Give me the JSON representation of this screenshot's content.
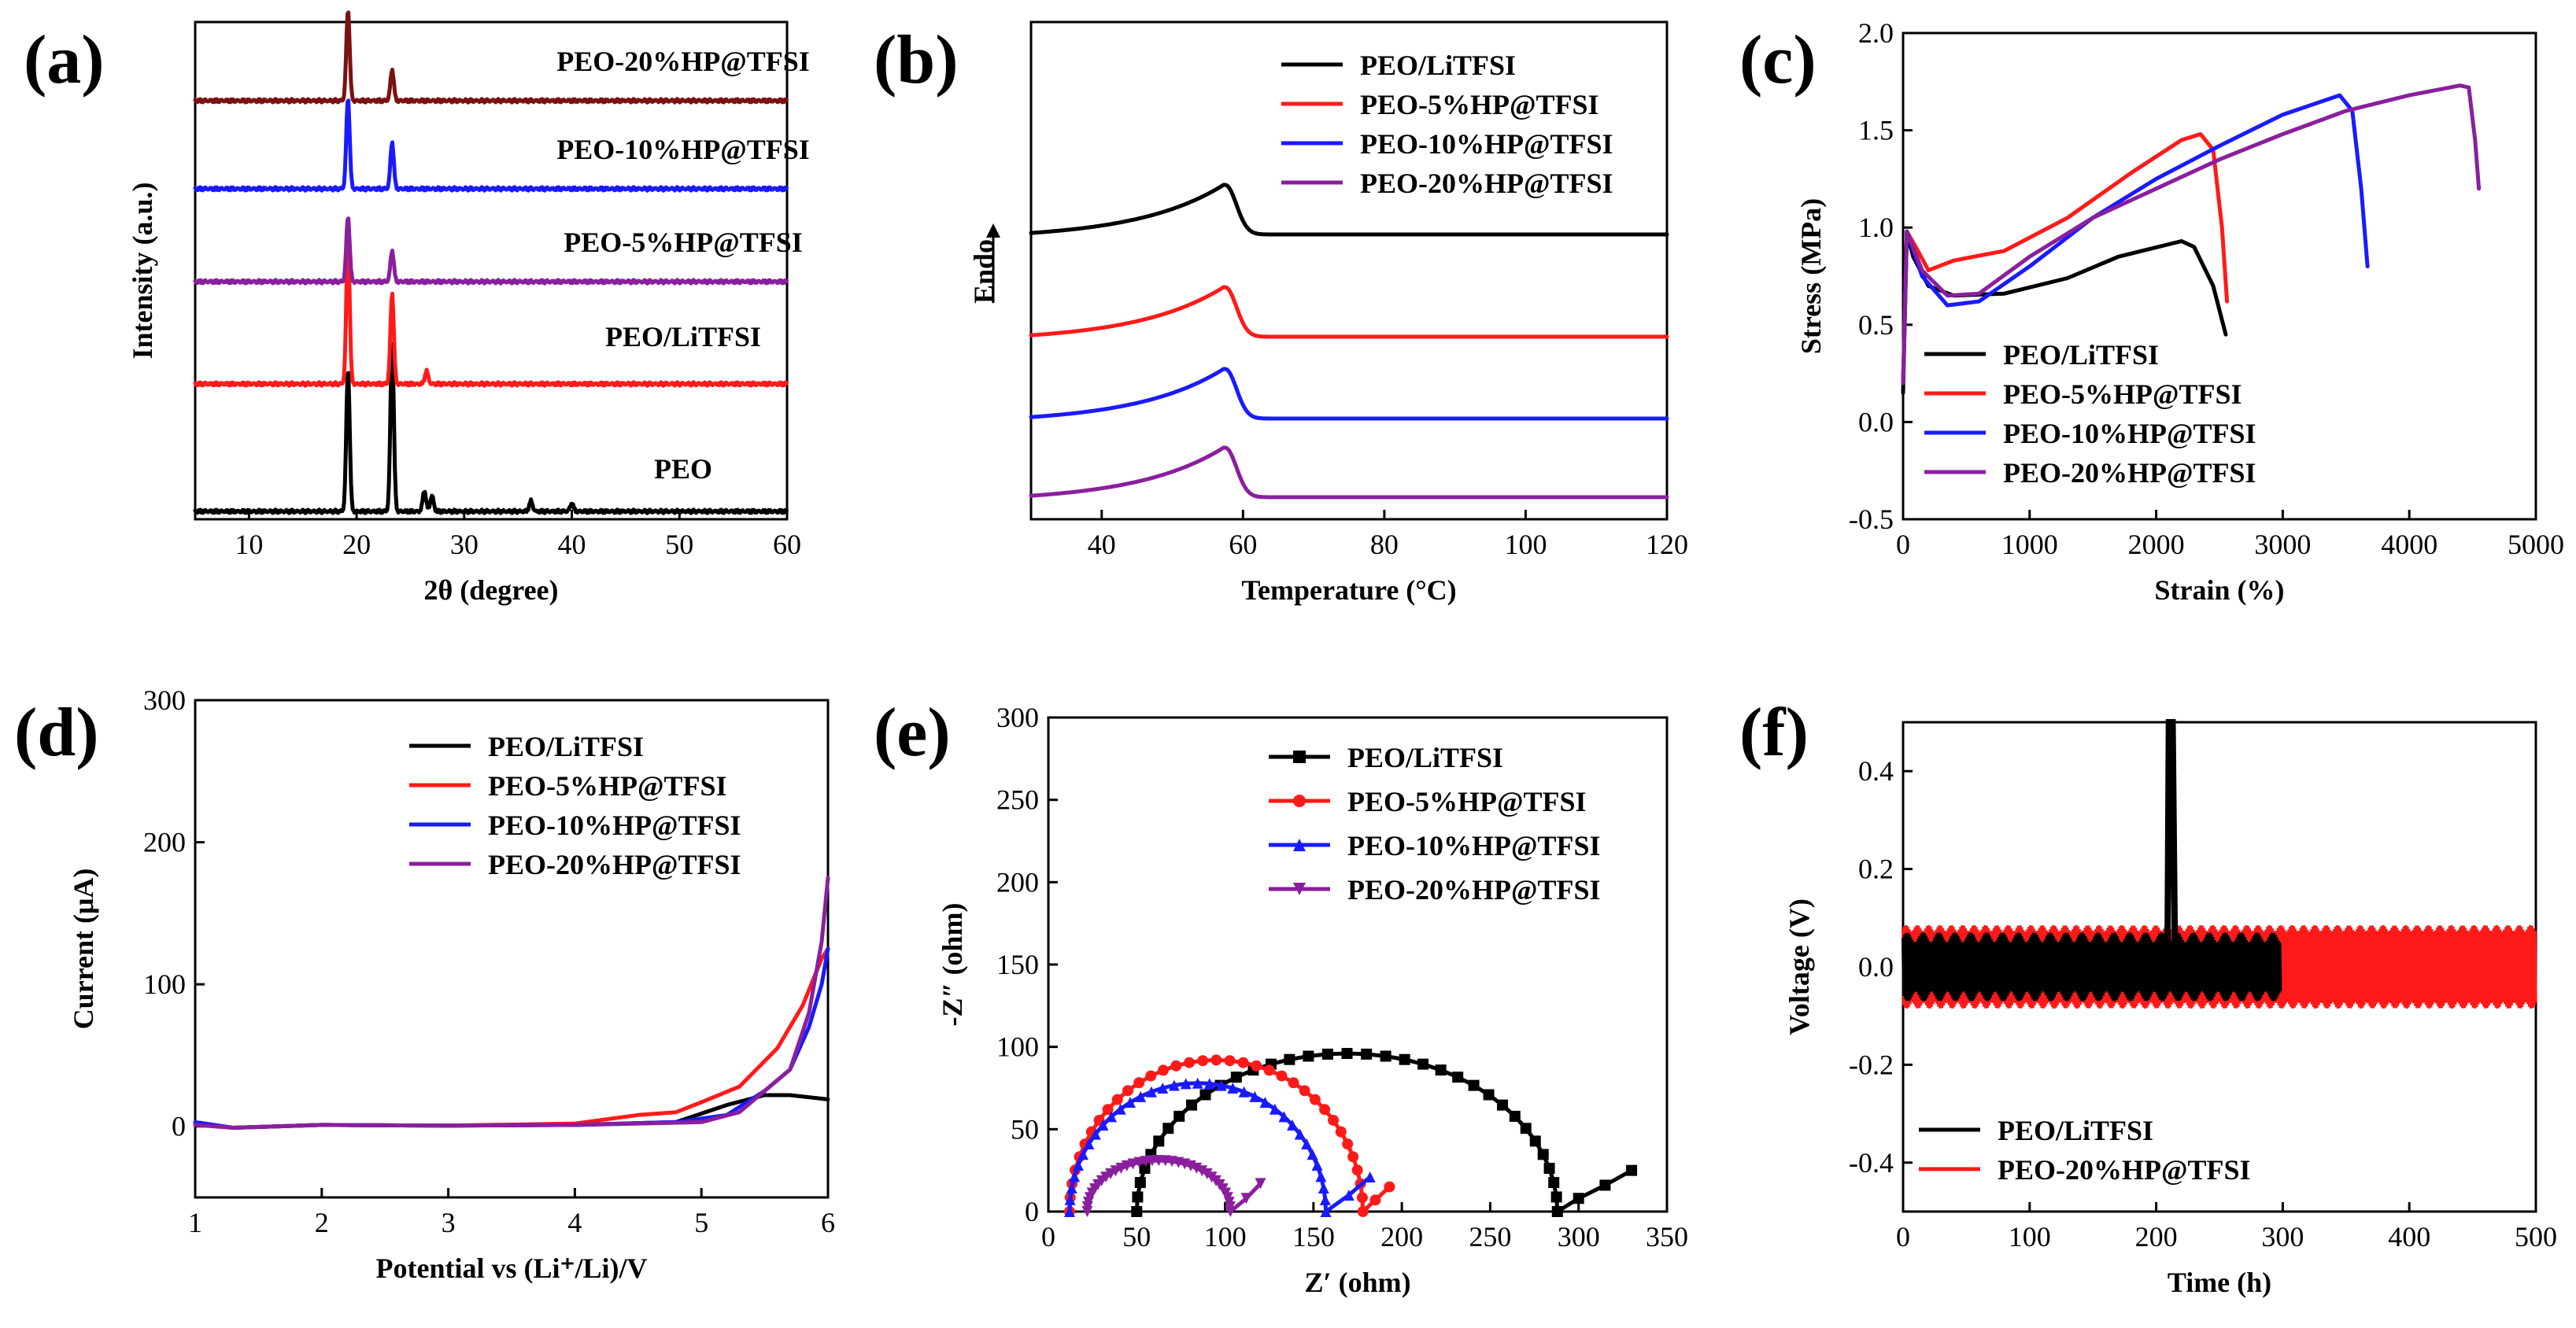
{
  "colors": {
    "black": "#000000",
    "red": "#ff1a1a",
    "blue": "#1a1aff",
    "purple": "#8a1f9e",
    "darkred": "#7a1212"
  },
  "chart_data": [
    {
      "panel": "(a)",
      "type": "line",
      "xlabel": "2θ (degree)",
      "ylabel": "Intensity (a.u.)",
      "xlim": [
        5,
        60
      ],
      "xticks": [
        10,
        20,
        30,
        40,
        50,
        60
      ],
      "series": [
        {
          "name": "PEO",
          "color": "#000000",
          "offset": 0,
          "peaks": [
            [
              19.2,
              0.55
            ],
            [
              23.3,
              0.65
            ],
            [
              26.3,
              0.08
            ],
            [
              27.0,
              0.06
            ],
            [
              36.2,
              0.04
            ],
            [
              40.0,
              0.03
            ]
          ]
        },
        {
          "name": "PEO/LiTFSI",
          "color": "#ff1a1a",
          "offset": 1,
          "peaks": [
            [
              19.2,
              0.55
            ],
            [
              23.3,
              0.35
            ],
            [
              26.5,
              0.05
            ]
          ]
        },
        {
          "name": "PEO-5%HP@TFSI",
          "color": "#8a1f9e",
          "offset": 2,
          "peaks": [
            [
              19.2,
              0.25
            ],
            [
              23.3,
              0.12
            ]
          ]
        },
        {
          "name": "PEO-10%HP@TFSI",
          "color": "#1a1aff",
          "offset": 3,
          "peaks": [
            [
              19.2,
              0.35
            ],
            [
              23.3,
              0.18
            ]
          ]
        },
        {
          "name": "PEO-20%HP@TFSI",
          "color": "#7a1212",
          "offset": 4,
          "peaks": [
            [
              19.2,
              0.35
            ],
            [
              23.3,
              0.12
            ]
          ]
        }
      ]
    },
    {
      "panel": "(b)",
      "type": "line",
      "xlabel": "Temperature (°C)",
      "ylabel": "Endo",
      "xlim": [
        30,
        120
      ],
      "xticks": [
        40,
        60,
        80,
        100,
        120
      ],
      "series": [
        {
          "name": "PEO/LiTFSI",
          "color": "#000000",
          "peak_T": 57.5
        },
        {
          "name": "PEO-5%HP@TFSI",
          "color": "#ff1a1a",
          "peak_T": 57.5
        },
        {
          "name": "PEO-10%HP@TFSI",
          "color": "#1a1aff",
          "peak_T": 57.5
        },
        {
          "name": "PEO-20%HP@TFSI",
          "color": "#8a1f9e",
          "peak_T": 57.5
        }
      ]
    },
    {
      "panel": "(c)",
      "type": "line",
      "xlabel": "Strain (%)",
      "ylabel": "Stress (MPa)",
      "xlim": [
        0,
        5000
      ],
      "ylim": [
        -0.5,
        2.0
      ],
      "xticks": [
        0,
        1000,
        2000,
        3000,
        4000,
        5000
      ],
      "yticks": [
        -0.5,
        0.0,
        0.5,
        1.0,
        1.5,
        2.0
      ],
      "series": [
        {
          "name": "PEO/LiTFSI",
          "color": "#000000",
          "points": [
            [
              0,
              0.15
            ],
            [
              30,
              0.97
            ],
            [
              80,
              0.85
            ],
            [
              200,
              0.7
            ],
            [
              400,
              0.65
            ],
            [
              800,
              0.66
            ],
            [
              1300,
              0.74
            ],
            [
              1700,
              0.85
            ],
            [
              2200,
              0.93
            ],
            [
              2300,
              0.9
            ],
            [
              2450,
              0.7
            ],
            [
              2550,
              0.45
            ]
          ]
        },
        {
          "name": "PEO-5%HP@TFSI",
          "color": "#ff1a1a",
          "points": [
            [
              0,
              0.2
            ],
            [
              30,
              0.98
            ],
            [
              100,
              0.9
            ],
            [
              200,
              0.78
            ],
            [
              400,
              0.83
            ],
            [
              800,
              0.88
            ],
            [
              1300,
              1.05
            ],
            [
              1800,
              1.28
            ],
            [
              2200,
              1.45
            ],
            [
              2350,
              1.48
            ],
            [
              2450,
              1.4
            ],
            [
              2520,
              1.0
            ],
            [
              2560,
              0.62
            ]
          ]
        },
        {
          "name": "PEO-10%HP@TFSI",
          "color": "#1a1aff",
          "points": [
            [
              0,
              0.2
            ],
            [
              30,
              0.98
            ],
            [
              150,
              0.75
            ],
            [
              350,
              0.6
            ],
            [
              600,
              0.62
            ],
            [
              1000,
              0.8
            ],
            [
              1500,
              1.05
            ],
            [
              2000,
              1.25
            ],
            [
              2500,
              1.42
            ],
            [
              3000,
              1.58
            ],
            [
              3450,
              1.68
            ],
            [
              3550,
              1.6
            ],
            [
              3620,
              1.2
            ],
            [
              3670,
              0.8
            ]
          ]
        },
        {
          "name": "PEO-20%HP@TFSI",
          "color": "#8a1f9e",
          "points": [
            [
              0,
              0.2
            ],
            [
              30,
              0.98
            ],
            [
              150,
              0.78
            ],
            [
              350,
              0.65
            ],
            [
              600,
              0.66
            ],
            [
              1000,
              0.85
            ],
            [
              1500,
              1.05
            ],
            [
              2000,
              1.2
            ],
            [
              2500,
              1.35
            ],
            [
              3000,
              1.48
            ],
            [
              3500,
              1.6
            ],
            [
              4000,
              1.68
            ],
            [
              4400,
              1.73
            ],
            [
              4470,
              1.72
            ],
            [
              4520,
              1.45
            ],
            [
              4550,
              1.2
            ]
          ]
        }
      ]
    },
    {
      "panel": "(d)",
      "type": "line",
      "xlabel": "Potential vs (Li⁺/Li)/V",
      "ylabel": "Current (μA)",
      "xlim": [
        1,
        6
      ],
      "ylim": [
        -50,
        300
      ],
      "xticks": [
        1,
        2,
        3,
        4,
        5,
        6
      ],
      "yticks": [
        0,
        100,
        200,
        300
      ],
      "series": [
        {
          "name": "PEO/LiTFSI",
          "color": "#000000",
          "points": [
            [
              1,
              2
            ],
            [
              1.3,
              -1
            ],
            [
              2,
              1
            ],
            [
              3,
              0.5
            ],
            [
              4,
              1
            ],
            [
              4.8,
              3
            ],
            [
              5.2,
              15
            ],
            [
              5.5,
              22
            ],
            [
              5.7,
              22
            ],
            [
              6,
              19
            ]
          ]
        },
        {
          "name": "PEO-5%HP@TFSI",
          "color": "#ff1a1a",
          "points": [
            [
              1,
              2
            ],
            [
              1.3,
              -1
            ],
            [
              2,
              1
            ],
            [
              3,
              0.5
            ],
            [
              4,
              2
            ],
            [
              4.5,
              8
            ],
            [
              4.8,
              10
            ],
            [
              5.0,
              17
            ],
            [
              5.3,
              28
            ],
            [
              5.6,
              55
            ],
            [
              5.8,
              85
            ],
            [
              5.95,
              118
            ],
            [
              6,
              125
            ]
          ]
        },
        {
          "name": "PEO-10%HP@TFSI",
          "color": "#1a1aff",
          "points": [
            [
              1,
              3
            ],
            [
              1.3,
              -1
            ],
            [
              2,
              1
            ],
            [
              3,
              0.5
            ],
            [
              4,
              1
            ],
            [
              4.8,
              3
            ],
            [
              5.2,
              8
            ],
            [
              5.5,
              25
            ],
            [
              5.7,
              40
            ],
            [
              5.85,
              70
            ],
            [
              5.95,
              100
            ],
            [
              6,
              125
            ]
          ]
        },
        {
          "name": "PEO-20%HP@TFSI",
          "color": "#8a1f9e",
          "points": [
            [
              1,
              1
            ],
            [
              1.3,
              -1
            ],
            [
              2,
              1
            ],
            [
              3,
              0.5
            ],
            [
              4,
              1
            ],
            [
              5.0,
              3
            ],
            [
              5.3,
              10
            ],
            [
              5.5,
              25
            ],
            [
              5.7,
              40
            ],
            [
              5.85,
              80
            ],
            [
              5.95,
              130
            ],
            [
              6,
              175
            ]
          ]
        }
      ]
    },
    {
      "panel": "(e)",
      "type": "scatter",
      "xlabel": "Z′ (ohm)",
      "ylabel": "-Z″ (ohm)",
      "xlim": [
        0,
        350
      ],
      "ylim": [
        0,
        300
      ],
      "xticks": [
        0,
        50,
        100,
        150,
        200,
        250,
        300,
        350
      ],
      "yticks": [
        0,
        50,
        100,
        150,
        200,
        250,
        300
      ],
      "series": [
        {
          "name": "PEO/LiTFSI",
          "color": "#000000",
          "marker": "square",
          "arc": [
            50,
            288,
            96
          ],
          "tail": [
            [
              288,
              0
            ],
            [
              300,
              8
            ],
            [
              315,
              16
            ],
            [
              330,
              25
            ]
          ]
        },
        {
          "name": "PEO-5%HP@TFSI",
          "color": "#ff1a1a",
          "marker": "circle",
          "arc": [
            12,
            178,
            92
          ],
          "tail": [
            [
              178,
              0
            ],
            [
              185,
              7
            ],
            [
              193,
              15
            ]
          ]
        },
        {
          "name": "PEO-10%HP@TFSI",
          "color": "#1a1aff",
          "marker": "triangle-up",
          "arc": [
            12,
            157,
            78
          ],
          "tail": [
            [
              157,
              0
            ],
            [
              170,
              10
            ],
            [
              182,
              21
            ]
          ]
        },
        {
          "name": "PEO-20%HP@TFSI",
          "color": "#8a1f9e",
          "marker": "triangle-down",
          "arc": [
            22,
            103,
            31
          ],
          "tail": [
            [
              103,
              0
            ],
            [
              112,
              8
            ],
            [
              120,
              17
            ]
          ]
        }
      ]
    },
    {
      "panel": "(f)",
      "type": "line",
      "xlabel": "Time (h)",
      "ylabel": "Voltage (V)",
      "xlim": [
        0,
        500
      ],
      "ylim": [
        -0.5,
        0.5
      ],
      "xticks": [
        0,
        100,
        200,
        300,
        400,
        500
      ],
      "yticks": [
        -0.4,
        -0.2,
        0.0,
        0.2,
        0.4
      ],
      "series": [
        {
          "name": "PEO/LiTFSI",
          "color": "#000000",
          "t_end": 298,
          "amplitude": 0.07,
          "short_circuit_t": 213
        },
        {
          "name": "PEO-20%HP@TFSI",
          "color": "#ff1a1a",
          "t_end": 500,
          "amplitude": 0.085
        }
      ]
    }
  ],
  "labels": {
    "a": "(a)",
    "b": "(b)",
    "c": "(c)",
    "d": "(d)",
    "e": "(e)",
    "f": "(f)"
  }
}
